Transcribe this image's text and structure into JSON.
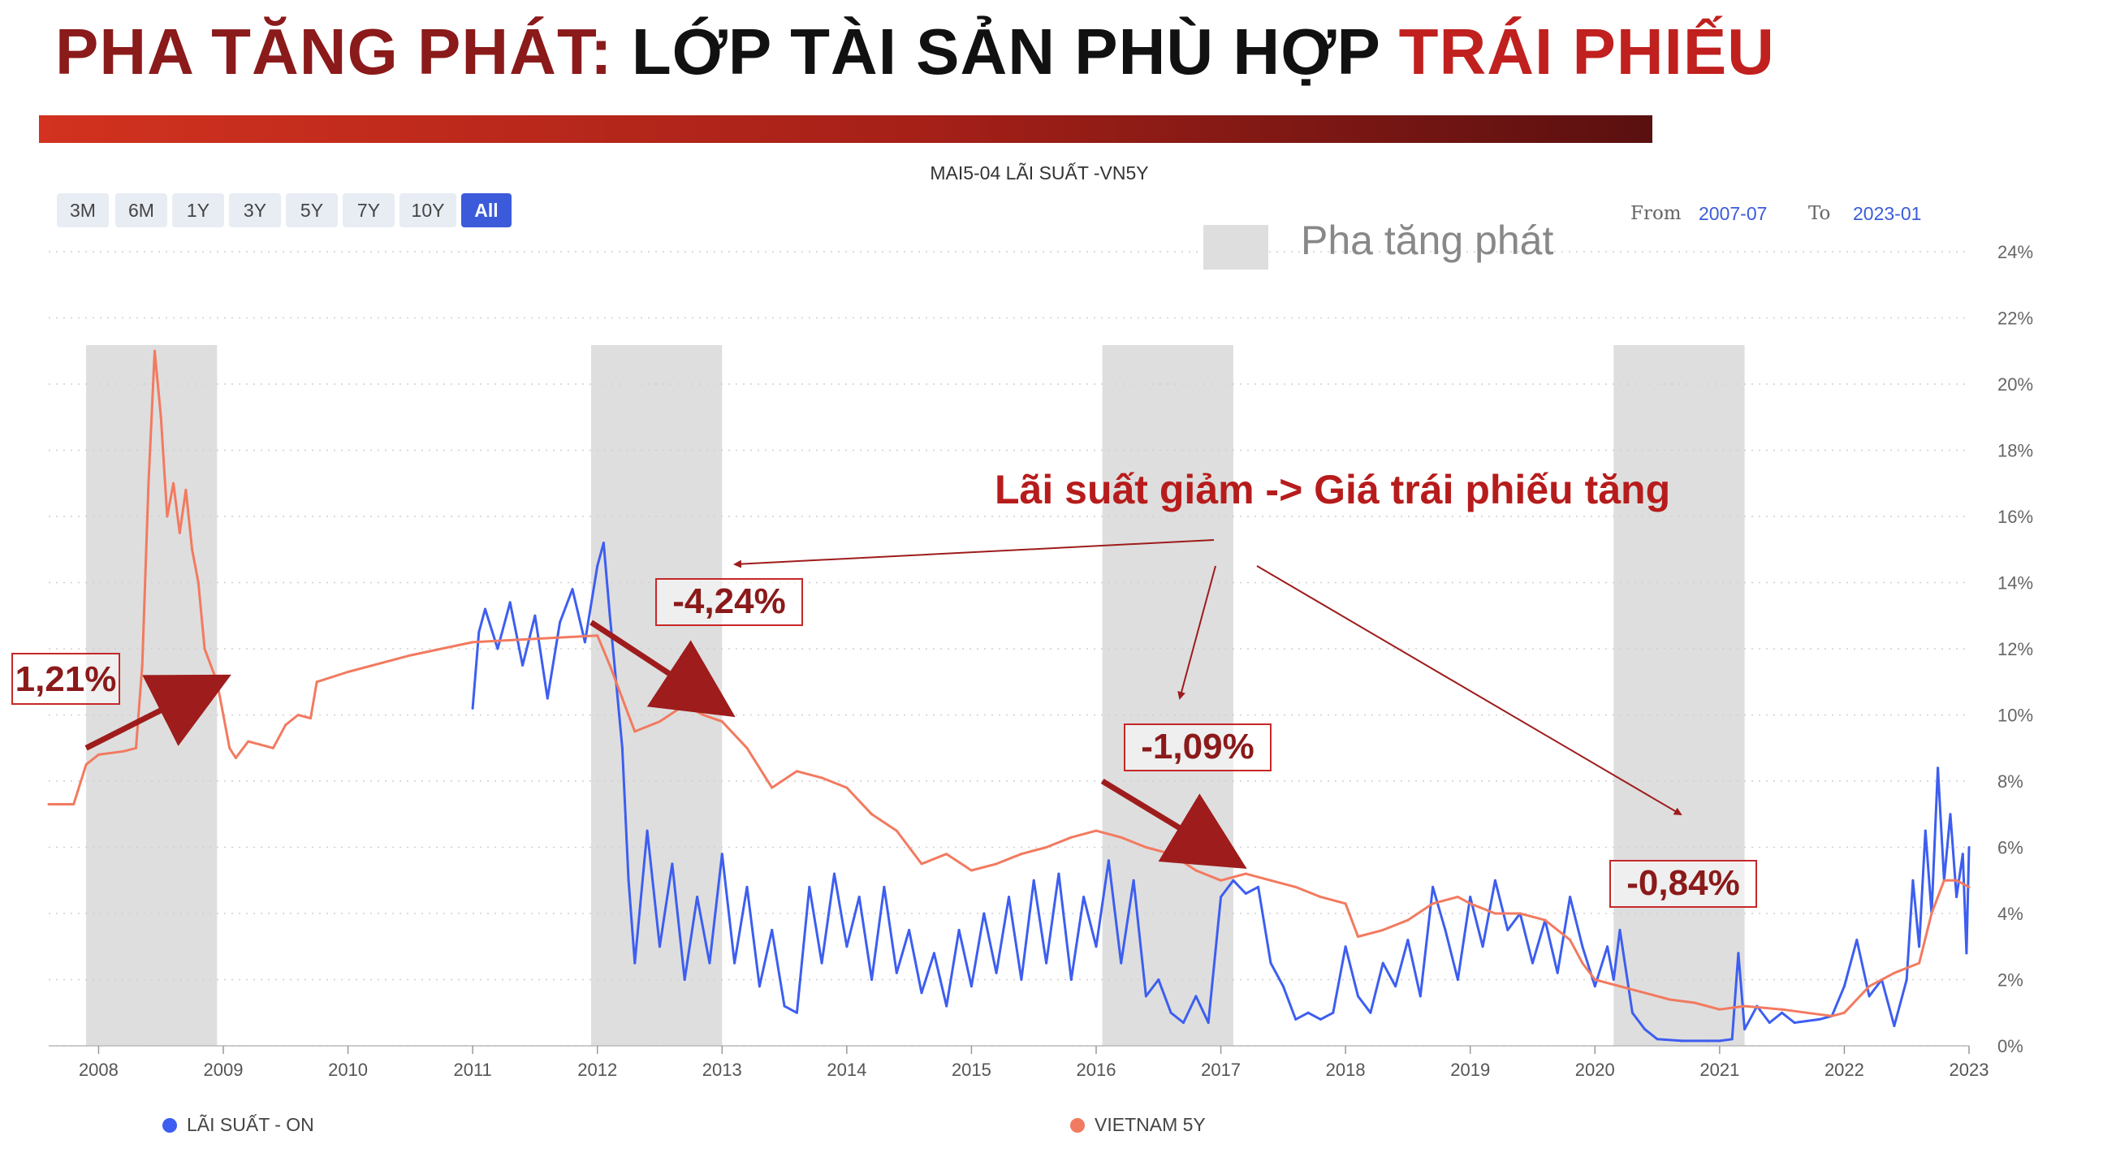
{
  "headline": {
    "part1": "PHA TĂNG PHÁT:",
    "part2": "LỚP TÀI SẢN PHÙ HỢP",
    "part3": "TRÁI PHIẾU"
  },
  "colors": {
    "blue_series": "#3d5ef0",
    "salmon_series": "#f27a60",
    "shade": "#dedede",
    "annot": "#9e1c1c",
    "accent_btn": "#3b5bdb"
  },
  "range_buttons": [
    "3M",
    "6M",
    "1Y",
    "3Y",
    "5Y",
    "7Y",
    "10Y",
    "All"
  ],
  "range_active": "All",
  "from_label": "From",
  "from_value": "2007-07",
  "to_label": "To",
  "to_value": "2023-01",
  "chart_data": {
    "type": "line",
    "title": "MAI5-04 LÃI SUẤT -VN5Y",
    "xlim": [
      2007.6,
      2023.0
    ],
    "ylim": [
      0,
      24
    ],
    "x_ticks": [
      2008,
      2009,
      2010,
      2011,
      2012,
      2013,
      2014,
      2015,
      2016,
      2017,
      2018,
      2019,
      2020,
      2021,
      2022,
      2023
    ],
    "y_ticks": [
      "0%",
      "2%",
      "4%",
      "6%",
      "8%",
      "10%",
      "12%",
      "14%",
      "16%",
      "18%",
      "20%",
      "22%",
      "24%"
    ],
    "grid": "horizontal dotted",
    "legend_position": "bottom",
    "shaded_regions": [
      [
        2007.9,
        2008.95
      ],
      [
        2011.95,
        2013.0
      ],
      [
        2016.05,
        2017.1
      ],
      [
        2020.15,
        2021.2
      ]
    ],
    "shade_legend": "Pha tăng phát",
    "series": [
      {
        "name": "LÃI SUẤT - ON",
        "color": "#3d5ef0",
        "points": [
          [
            2011.0,
            10.2
          ],
          [
            2011.05,
            12.5
          ],
          [
            2011.1,
            13.2
          ],
          [
            2011.2,
            12.0
          ],
          [
            2011.3,
            13.4
          ],
          [
            2011.4,
            11.5
          ],
          [
            2011.5,
            13.0
          ],
          [
            2011.6,
            10.5
          ],
          [
            2011.7,
            12.8
          ],
          [
            2011.8,
            13.8
          ],
          [
            2011.9,
            12.2
          ],
          [
            2012.0,
            14.5
          ],
          [
            2012.05,
            15.2
          ],
          [
            2012.1,
            13.0
          ],
          [
            2012.15,
            11.0
          ],
          [
            2012.2,
            9.0
          ],
          [
            2012.25,
            5.0
          ],
          [
            2012.3,
            2.5
          ],
          [
            2012.4,
            6.5
          ],
          [
            2012.5,
            3.0
          ],
          [
            2012.6,
            5.5
          ],
          [
            2012.7,
            2.0
          ],
          [
            2012.8,
            4.5
          ],
          [
            2012.9,
            2.5
          ],
          [
            2013.0,
            5.8
          ],
          [
            2013.1,
            2.5
          ],
          [
            2013.2,
            4.8
          ],
          [
            2013.3,
            1.8
          ],
          [
            2013.4,
            3.5
          ],
          [
            2013.5,
            1.2
          ],
          [
            2013.6,
            1.0
          ],
          [
            2013.7,
            4.8
          ],
          [
            2013.8,
            2.5
          ],
          [
            2013.9,
            5.2
          ],
          [
            2014.0,
            3.0
          ],
          [
            2014.1,
            4.5
          ],
          [
            2014.2,
            2.0
          ],
          [
            2014.3,
            4.8
          ],
          [
            2014.4,
            2.2
          ],
          [
            2014.5,
            3.5
          ],
          [
            2014.6,
            1.6
          ],
          [
            2014.7,
            2.8
          ],
          [
            2014.8,
            1.2
          ],
          [
            2014.9,
            3.5
          ],
          [
            2015.0,
            1.8
          ],
          [
            2015.1,
            4.0
          ],
          [
            2015.2,
            2.2
          ],
          [
            2015.3,
            4.5
          ],
          [
            2015.4,
            2.0
          ],
          [
            2015.5,
            5.0
          ],
          [
            2015.6,
            2.5
          ],
          [
            2015.7,
            5.2
          ],
          [
            2015.8,
            2.0
          ],
          [
            2015.9,
            4.5
          ],
          [
            2016.0,
            3.0
          ],
          [
            2016.1,
            5.6
          ],
          [
            2016.2,
            2.5
          ],
          [
            2016.3,
            5.0
          ],
          [
            2016.4,
            1.5
          ],
          [
            2016.5,
            2.0
          ],
          [
            2016.6,
            1.0
          ],
          [
            2016.7,
            0.7
          ],
          [
            2016.8,
            1.5
          ],
          [
            2016.9,
            0.7
          ],
          [
            2017.0,
            4.5
          ],
          [
            2017.1,
            5.0
          ],
          [
            2017.2,
            4.6
          ],
          [
            2017.3,
            4.8
          ],
          [
            2017.4,
            2.5
          ],
          [
            2017.5,
            1.8
          ],
          [
            2017.6,
            0.8
          ],
          [
            2017.7,
            1.0
          ],
          [
            2017.8,
            0.8
          ],
          [
            2017.9,
            1.0
          ],
          [
            2018.0,
            3.0
          ],
          [
            2018.1,
            1.5
          ],
          [
            2018.2,
            1.0
          ],
          [
            2018.3,
            2.5
          ],
          [
            2018.4,
            1.8
          ],
          [
            2018.5,
            3.2
          ],
          [
            2018.6,
            1.5
          ],
          [
            2018.7,
            4.8
          ],
          [
            2018.8,
            3.5
          ],
          [
            2018.9,
            2.0
          ],
          [
            2019.0,
            4.5
          ],
          [
            2019.1,
            3.0
          ],
          [
            2019.2,
            5.0
          ],
          [
            2019.3,
            3.5
          ],
          [
            2019.4,
            4.0
          ],
          [
            2019.5,
            2.5
          ],
          [
            2019.6,
            3.8
          ],
          [
            2019.7,
            2.2
          ],
          [
            2019.8,
            4.5
          ],
          [
            2019.9,
            3.0
          ],
          [
            2020.0,
            1.8
          ],
          [
            2020.1,
            3.0
          ],
          [
            2020.15,
            2.0
          ],
          [
            2020.2,
            3.5
          ],
          [
            2020.3,
            1.0
          ],
          [
            2020.4,
            0.5
          ],
          [
            2020.5,
            0.2
          ],
          [
            2020.7,
            0.15
          ],
          [
            2020.9,
            0.15
          ],
          [
            2021.0,
            0.15
          ],
          [
            2021.1,
            0.2
          ],
          [
            2021.15,
            2.8
          ],
          [
            2021.2,
            0.5
          ],
          [
            2021.3,
            1.2
          ],
          [
            2021.4,
            0.7
          ],
          [
            2021.5,
            1.0
          ],
          [
            2021.6,
            0.7
          ],
          [
            2021.8,
            0.8
          ],
          [
            2021.9,
            0.9
          ],
          [
            2022.0,
            1.8
          ],
          [
            2022.1,
            3.2
          ],
          [
            2022.2,
            1.5
          ],
          [
            2022.3,
            2.0
          ],
          [
            2022.4,
            0.6
          ],
          [
            2022.5,
            2.0
          ],
          [
            2022.55,
            5.0
          ],
          [
            2022.6,
            3.0
          ],
          [
            2022.65,
            6.5
          ],
          [
            2022.7,
            4.0
          ],
          [
            2022.75,
            8.4
          ],
          [
            2022.8,
            5.0
          ],
          [
            2022.85,
            7.0
          ],
          [
            2022.9,
            4.5
          ],
          [
            2022.95,
            5.8
          ],
          [
            2022.98,
            2.8
          ],
          [
            2023.0,
            6.0
          ]
        ]
      },
      {
        "name": "VIETNAM 5Y",
        "color": "#f27a60",
        "points": [
          [
            2007.6,
            7.3
          ],
          [
            2007.8,
            7.3
          ],
          [
            2007.9,
            8.5
          ],
          [
            2008.0,
            8.8
          ],
          [
            2008.2,
            8.9
          ],
          [
            2008.3,
            9.0
          ],
          [
            2008.35,
            11.5
          ],
          [
            2008.4,
            17.0
          ],
          [
            2008.45,
            21.0
          ],
          [
            2008.5,
            19.0
          ],
          [
            2008.55,
            16.0
          ],
          [
            2008.6,
            17.0
          ],
          [
            2008.65,
            15.5
          ],
          [
            2008.7,
            16.8
          ],
          [
            2008.75,
            15.0
          ],
          [
            2008.8,
            14.0
          ],
          [
            2008.85,
            12.0
          ],
          [
            2008.95,
            11.0
          ],
          [
            2009.0,
            10.0
          ],
          [
            2009.05,
            9.0
          ],
          [
            2009.1,
            8.7
          ],
          [
            2009.2,
            9.2
          ],
          [
            2009.4,
            9.0
          ],
          [
            2009.5,
            9.7
          ],
          [
            2009.6,
            10.0
          ],
          [
            2009.7,
            9.9
          ],
          [
            2009.75,
            11.0
          ],
          [
            2010.0,
            11.3
          ],
          [
            2010.5,
            11.8
          ],
          [
            2011.0,
            12.2
          ],
          [
            2011.5,
            12.3
          ],
          [
            2012.0,
            12.4
          ],
          [
            2012.1,
            11.5
          ],
          [
            2012.2,
            10.5
          ],
          [
            2012.3,
            9.5
          ],
          [
            2012.5,
            9.8
          ],
          [
            2012.7,
            10.3
          ],
          [
            2012.85,
            10.0
          ],
          [
            2013.0,
            9.8
          ],
          [
            2013.2,
            9.0
          ],
          [
            2013.4,
            7.8
          ],
          [
            2013.6,
            8.3
          ],
          [
            2013.8,
            8.1
          ],
          [
            2014.0,
            7.8
          ],
          [
            2014.2,
            7.0
          ],
          [
            2014.4,
            6.5
          ],
          [
            2014.6,
            5.5
          ],
          [
            2014.8,
            5.8
          ],
          [
            2015.0,
            5.3
          ],
          [
            2015.2,
            5.5
          ],
          [
            2015.4,
            5.8
          ],
          [
            2015.6,
            6.0
          ],
          [
            2015.8,
            6.3
          ],
          [
            2016.0,
            6.5
          ],
          [
            2016.2,
            6.3
          ],
          [
            2016.4,
            6.0
          ],
          [
            2016.6,
            5.8
          ],
          [
            2016.8,
            5.3
          ],
          [
            2017.0,
            5.0
          ],
          [
            2017.2,
            5.2
          ],
          [
            2017.4,
            5.0
          ],
          [
            2017.6,
            4.8
          ],
          [
            2017.8,
            4.5
          ],
          [
            2018.0,
            4.3
          ],
          [
            2018.1,
            3.3
          ],
          [
            2018.3,
            3.5
          ],
          [
            2018.5,
            3.8
          ],
          [
            2018.7,
            4.3
          ],
          [
            2018.9,
            4.5
          ],
          [
            2019.0,
            4.3
          ],
          [
            2019.2,
            4.0
          ],
          [
            2019.4,
            4.0
          ],
          [
            2019.6,
            3.8
          ],
          [
            2019.8,
            3.2
          ],
          [
            2019.9,
            2.5
          ],
          [
            2020.0,
            2.0
          ],
          [
            2020.2,
            1.8
          ],
          [
            2020.4,
            1.6
          ],
          [
            2020.6,
            1.4
          ],
          [
            2020.8,
            1.3
          ],
          [
            2021.0,
            1.1
          ],
          [
            2021.2,
            1.2
          ],
          [
            2021.5,
            1.1
          ],
          [
            2021.7,
            1.0
          ],
          [
            2021.9,
            0.9
          ],
          [
            2022.0,
            1.0
          ],
          [
            2022.2,
            1.8
          ],
          [
            2022.4,
            2.2
          ],
          [
            2022.6,
            2.5
          ],
          [
            2022.7,
            4.0
          ],
          [
            2022.8,
            5.0
          ],
          [
            2022.9,
            5.0
          ],
          [
            2023.0,
            4.8
          ]
        ]
      }
    ],
    "annotations": {
      "headline_text": "Lãi suất giảm -> Giá trái phiếu tăng",
      "boxes": [
        {
          "label": "1,21%",
          "arrow_from": [
            2007.9,
            9.0
          ],
          "arrow_to": [
            2008.95,
            11.0
          ]
        },
        {
          "label": "-4,24%",
          "arrow_from": [
            2011.95,
            12.8
          ],
          "arrow_to": [
            2013.0,
            10.2
          ]
        },
        {
          "label": "-1,09%",
          "arrow_from": [
            2016.05,
            8.0
          ],
          "arrow_to": [
            2017.1,
            5.6
          ]
        },
        {
          "label": "-0,84%",
          "arrow_from": null,
          "arrow_to": null
        }
      ]
    }
  }
}
